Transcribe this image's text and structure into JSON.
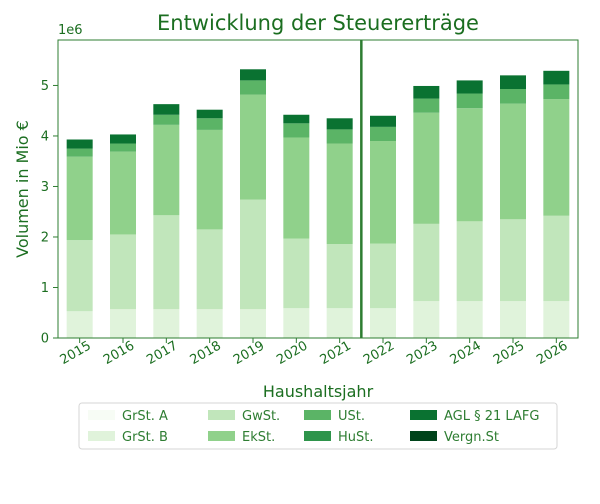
{
  "chart_data": {
    "type": "bar",
    "stacked": true,
    "title": "Entwicklung der Steuererträge",
    "xlabel": "Haushaltsjahr",
    "ylabel": "Volumen in Mio €",
    "y_scale_label": "1e6",
    "ylim": [
      0,
      5900000
    ],
    "yticks": [
      0,
      1,
      2,
      3,
      4,
      5
    ],
    "grid": false,
    "legend_position": "bottom",
    "divider_between": [
      "2021",
      "2022"
    ],
    "categories": [
      "2015",
      "2016",
      "2017",
      "2018",
      "2019",
      "2020",
      "2021",
      "2022",
      "2023",
      "2024",
      "2025",
      "2026"
    ],
    "series": [
      {
        "name": "GrSt. A",
        "color": "#f7fcf5",
        "values": [
          10000,
          10000,
          10000,
          10000,
          10000,
          10000,
          10000,
          10000,
          10000,
          10000,
          10000,
          10000
        ]
      },
      {
        "name": "GrSt. B",
        "color": "#e0f3db",
        "values": [
          520000,
          560000,
          560000,
          560000,
          560000,
          580000,
          580000,
          580000,
          720000,
          720000,
          720000,
          720000
        ]
      },
      {
        "name": "GwSt.",
        "color": "#c1e6bb",
        "values": [
          1410000,
          1480000,
          1860000,
          1580000,
          2170000,
          1380000,
          1270000,
          1280000,
          1530000,
          1580000,
          1620000,
          1690000
        ]
      },
      {
        "name": "EkSt.",
        "color": "#90d18b",
        "values": [
          1650000,
          1640000,
          1790000,
          1970000,
          2080000,
          2000000,
          1990000,
          2030000,
          2200000,
          2240000,
          2290000,
          2310000
        ]
      },
      {
        "name": "USt.",
        "color": "#5bb466",
        "values": [
          160000,
          160000,
          200000,
          230000,
          280000,
          280000,
          280000,
          280000,
          280000,
          290000,
          290000,
          290000
        ]
      },
      {
        "name": "HuSt.",
        "color": "#2e944b",
        "values": [
          0,
          0,
          0,
          0,
          0,
          0,
          0,
          0,
          0,
          0,
          0,
          0
        ]
      },
      {
        "name": "AGL § 21 LAFG",
        "color": "#0a7231",
        "values": [
          180000,
          180000,
          210000,
          170000,
          220000,
          170000,
          220000,
          220000,
          250000,
          260000,
          270000,
          270000
        ]
      },
      {
        "name": "Vergn.St",
        "color": "#00441b",
        "values": [
          0,
          0,
          0,
          0,
          0,
          0,
          0,
          0,
          0,
          0,
          0,
          0
        ]
      }
    ]
  }
}
